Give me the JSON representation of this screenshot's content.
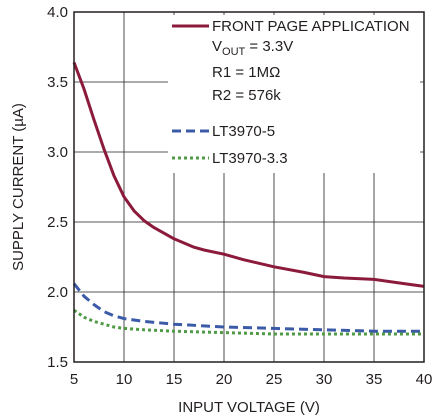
{
  "chart_data": {
    "type": "line",
    "xlabel": "INPUT VOLTAGE (V)",
    "ylabel": "SUPPLY CURRENT (µA)",
    "xlim": [
      5,
      40
    ],
    "ylim": [
      1.5,
      4.0
    ],
    "x_ticks": [
      "5",
      "10",
      "15",
      "20",
      "25",
      "30",
      "35",
      "40"
    ],
    "y_ticks": [
      "1.5",
      "2.0",
      "2.5",
      "3.0",
      "3.5",
      "4.0"
    ],
    "grid": true,
    "legend_position": "top-right",
    "legend": {
      "title": "FRONT PAGE APPLICATION",
      "vout_prefix": "V",
      "vout_sub": "OUT",
      "vout_value": " = 3.3V",
      "r1": "R1 = 1MΩ",
      "r2": "R2 = 576k"
    },
    "series": [
      {
        "name": "FRONT PAGE APPLICATION",
        "color": "#8b1a3b",
        "style": "solid",
        "x": [
          5,
          6,
          7,
          8,
          9,
          10,
          11,
          12,
          13,
          14,
          15,
          16,
          17,
          18,
          20,
          22,
          25,
          28,
          30,
          32,
          35,
          38,
          40
        ],
        "values": [
          3.64,
          3.45,
          3.23,
          3.02,
          2.83,
          2.68,
          2.58,
          2.51,
          2.46,
          2.42,
          2.38,
          2.35,
          2.32,
          2.3,
          2.27,
          2.23,
          2.18,
          2.14,
          2.11,
          2.1,
          2.09,
          2.06,
          2.04
        ]
      },
      {
        "name": "LT3970-5",
        "color": "#3b5ba9",
        "style": "dashed",
        "x": [
          5,
          6,
          7,
          8,
          9,
          10,
          12,
          15,
          20,
          25,
          30,
          35,
          40
        ],
        "values": [
          2.06,
          1.97,
          1.91,
          1.86,
          1.83,
          1.81,
          1.79,
          1.77,
          1.75,
          1.74,
          1.73,
          1.72,
          1.72
        ]
      },
      {
        "name": "LT3970-3.3",
        "color": "#4f9a45",
        "style": "dotted",
        "x": [
          5,
          6,
          7,
          8,
          9,
          10,
          12,
          15,
          20,
          25,
          30,
          35,
          40
        ],
        "values": [
          1.87,
          1.82,
          1.79,
          1.77,
          1.75,
          1.74,
          1.73,
          1.72,
          1.71,
          1.7,
          1.7,
          1.7,
          1.7
        ]
      }
    ]
  }
}
